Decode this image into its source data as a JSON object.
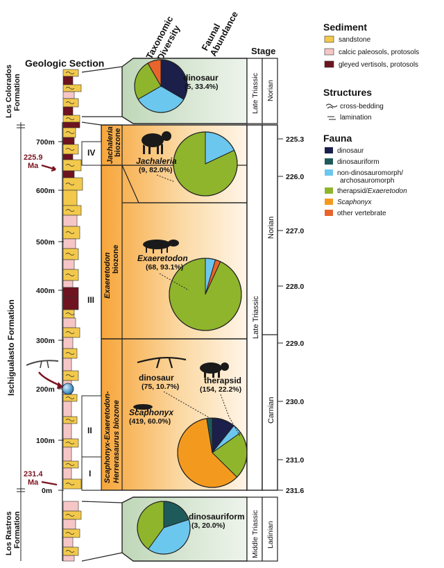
{
  "headers": {
    "geologic_section": "Geologic Section",
    "taxonomic_diversity": [
      "Taxonomic",
      "Diversity"
    ],
    "faunal_abundance": [
      "Faunal",
      "Abundance"
    ],
    "stage": "Stage"
  },
  "legend": {
    "sediment_title": "Sediment",
    "sediment": [
      {
        "label": "sandstone",
        "color": "#f2c94c"
      },
      {
        "label": "calcic paleosols, protosols",
        "color": "#f6c6c6"
      },
      {
        "label": "gleyed vertisols, protosols",
        "color": "#6e1420"
      }
    ],
    "structures_title": "Structures",
    "structures": [
      {
        "label": "cross-bedding",
        "icon": "cross-bedding-icon"
      },
      {
        "label": "lamination",
        "icon": "lamination-icon"
      }
    ],
    "fauna_title": "Fauna",
    "fauna": [
      {
        "label": "dinosaur",
        "color": "#1b1f4a"
      },
      {
        "label": "dinosauriform",
        "color": "#1f5a5a"
      },
      {
        "label": "non-dinosauromorph/",
        "label2": "archosauromorph",
        "color": "#6cc7ee"
      },
      {
        "label": "therapsid/",
        "label_italic": "Exaeretodon",
        "color": "#8fb52d"
      },
      {
        "label_italic": "Scaphonyx",
        "label": "",
        "color": "#f39a1e"
      },
      {
        "label": "other vertebrate",
        "color": "#e9642a"
      }
    ]
  },
  "formations": {
    "los_colorados": [
      "Los Colorados",
      "Formation"
    ],
    "ischigualasto": "Ischigualasto Formation",
    "los_rastros": [
      "Los Rastros",
      "Formation"
    ]
  },
  "meters": [
    "700m",
    "600m",
    "500m",
    "400m",
    "300m",
    "200m",
    "100m",
    "0m"
  ],
  "ma_markers": [
    {
      "value": "225.9",
      "unit": "Ma"
    },
    {
      "value": "231.4",
      "unit": "Ma"
    }
  ],
  "members": [
    "IV",
    "III",
    "II",
    "I"
  ],
  "biozones": {
    "jachaleria": [
      "Jachaleria",
      "biozone"
    ],
    "exaeretodon": [
      "Exaeretodon",
      "biozone"
    ],
    "scaphonyx": [
      "Scaphonyx-Exaeretodon-",
      "Herrerasaurus biozone"
    ]
  },
  "age_ticks": [
    "225.3",
    "226.0",
    "227.0",
    "228.0",
    "229.0",
    "230.0",
    "231.0",
    "231.6"
  ],
  "stages": {
    "late_triassic_top": "Late Triassic",
    "norian_top": "Norian",
    "late_triassic": "Late Triassic",
    "norian": "Norian",
    "carnian": "Carnian",
    "middle_triassic": "Middle Triassic",
    "ladinian": "Ladinian"
  },
  "chart_data": [
    {
      "type": "pie",
      "panel": "Los Colorados",
      "slices": [
        {
          "group": "dinosaur",
          "value": 33.4
        },
        {
          "group": "non-dinosauromorph/archosauromorph",
          "value": 33.3
        },
        {
          "group": "therapsid/Exaeretodon",
          "value": 25.0
        },
        {
          "group": "other vertebrate",
          "value": 8.3
        }
      ],
      "label": "dinosaur",
      "label_detail": "(5, 33.4%)"
    },
    {
      "type": "pie",
      "panel": "Jachaleria biozone",
      "slices": [
        {
          "group": "non-dinosauromorph/archosauromorph",
          "value": 18.0
        },
        {
          "group": "therapsid/Exaeretodon",
          "value": 82.0
        }
      ],
      "label": "Jachaleria",
      "label_detail": "(9, 82.0%)"
    },
    {
      "type": "pie",
      "panel": "Exaeretodon biozone",
      "slices": [
        {
          "group": "non-dinosauromorph/archosauromorph",
          "value": 4.5
        },
        {
          "group": "other vertebrate",
          "value": 2.4
        },
        {
          "group": "therapsid/Exaeretodon",
          "value": 93.1
        }
      ],
      "label": "Exaeretodon",
      "label_detail": "(68, 93.1%)"
    },
    {
      "type": "pie",
      "panel": "Scaphonyx-Exaeretodon-Herrerasaurus biozone",
      "slices": [
        {
          "group": "dinosaur",
          "value": 10.7
        },
        {
          "group": "non-dinosauromorph/archosauromorph",
          "value": 4.5
        },
        {
          "group": "therapsid/Exaeretodon",
          "value": 22.2
        },
        {
          "group": "Scaphonyx",
          "value": 60.0
        },
        {
          "group": "dinosauriform",
          "value": 2.6
        }
      ],
      "labels": [
        {
          "name": "dinosaur",
          "detail": "(75, 10.7%)"
        },
        {
          "name": "therapsid",
          "detail": "(154, 22.2%)"
        },
        {
          "name": "Scaphonyx",
          "detail": "(419, 60.0%)"
        }
      ]
    },
    {
      "type": "pie",
      "panel": "Los Rastros",
      "slices": [
        {
          "group": "dinosauriform",
          "value": 20.0
        },
        {
          "group": "non-dinosauromorph/archosauromorph",
          "value": 40.0
        },
        {
          "group": "therapsid/Exaeretodon",
          "value": 40.0
        }
      ],
      "label": "dinosauriform",
      "label_detail": "(3, 20.0%)"
    }
  ]
}
